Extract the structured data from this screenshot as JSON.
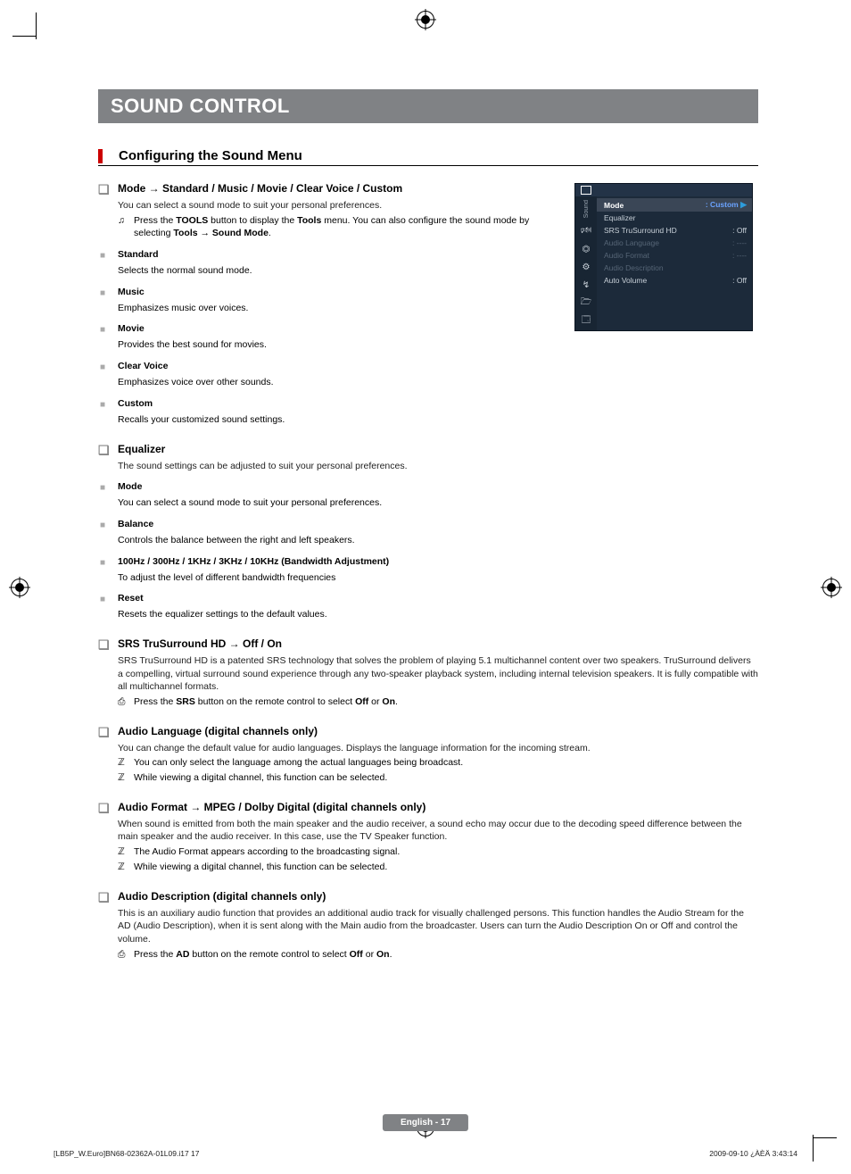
{
  "title_bar": "SOUND CONTROL",
  "section_heading": "Configuring the Sound Menu",
  "mode_section": {
    "heading": "Mode → Standard / Music / Movie / Clear Voice / Custom",
    "intro": "You can select a sound mode to suit your personal preferences.",
    "tip_icon": "♫",
    "tip_text_a": "Press the ",
    "tip_bold_a": "TOOLS",
    "tip_text_b": " button to display the ",
    "tip_bold_b": "Tools",
    "tip_text_c": " menu. You can also configure the sound mode by selecting ",
    "tip_bold_c": "Tools → Sound Mode",
    "tip_text_d": ".",
    "items": [
      {
        "title": "Standard",
        "body": "Selects the normal sound mode."
      },
      {
        "title": "Music",
        "body": "Emphasizes music over voices."
      },
      {
        "title": "Movie",
        "body": "Provides the best sound for movies."
      },
      {
        "title": "Clear Voice",
        "body": "Emphasizes voice over other sounds."
      },
      {
        "title": "Custom",
        "body": "Recalls your customized sound settings."
      }
    ]
  },
  "equalizer_section": {
    "heading": "Equalizer",
    "intro": "The sound settings can be adjusted to suit your personal preferences.",
    "items": [
      {
        "title": "Mode",
        "body": "You can select a sound mode to suit your personal preferences."
      },
      {
        "title": "Balance",
        "body": "Controls the balance between the right and left speakers."
      },
      {
        "title": "100Hz / 300Hz / 1KHz / 3KHz / 10KHz (Bandwidth Adjustment)",
        "body": "To adjust the level of different bandwidth frequencies"
      },
      {
        "title": "Reset",
        "body": "Resets the equalizer settings to the default values."
      }
    ]
  },
  "srs_section": {
    "heading": "SRS TruSurround HD → Off / On",
    "body": "SRS TruSurround HD is a patented SRS technology that solves the problem of playing 5.1 multichannel content over two speakers. TruSurround delivers a compelling, virtual surround sound experience through any two-speaker playback system, including internal television speakers. It is fully compatible with all multichannel formats.",
    "tip_icon": "⎙",
    "tip_a": "Press the ",
    "tip_bold": "SRS",
    "tip_b": " button on the remote control to select ",
    "tip_bold2": "Off",
    "tip_c": " or ",
    "tip_bold3": "On",
    "tip_d": "."
  },
  "audiolang_section": {
    "heading": "Audio Language (digital channels only)",
    "body": "You can change the default value for audio languages. Displays the language information for the incoming stream.",
    "note_icon": "ℤ",
    "note1": "You can only select the language among the actual languages being broadcast.",
    "note2": "While viewing a digital channel, this function can be selected."
  },
  "audiofmt_section": {
    "heading": "Audio Format → MPEG / Dolby Digital (digital channels only)",
    "body": "When sound is emitted from both the main speaker and the audio receiver, a sound echo may occur due to the decoding speed difference between the main speaker and the audio receiver. In this case, use the TV Speaker function.",
    "note_icon": "ℤ",
    "note1": "The Audio Format appears according to the broadcasting signal.",
    "note2": "While viewing a digital channel, this function can be selected."
  },
  "audiodesc_section": {
    "heading": "Audio Description (digital channels only)",
    "body": "This is an auxiliary audio function that provides an additional audio track for visually challenged persons. This function handles the Audio Stream for the AD (Audio Description), when it is sent along with the Main audio from the broadcaster. Users can turn the Audio Description On or Off and control the volume.",
    "tip_icon": "⎙",
    "tip_a": "Press the ",
    "tip_bold": "AD",
    "tip_b": " button on the remote control to select ",
    "tip_bold2": "Off",
    "tip_c": " or ",
    "tip_bold3": "On",
    "tip_d": "."
  },
  "osd": {
    "rail_label": "Sound",
    "icons": [
      "⏣",
      "⚙",
      "↯",
      "🗁",
      "🗔"
    ],
    "speaker_icon": "🕬",
    "rows": [
      {
        "label": "Mode",
        "value": ": Custom",
        "highlight": true,
        "arrow": "▶"
      },
      {
        "label": "Equalizer",
        "value": ""
      },
      {
        "label": "SRS TruSurround HD",
        "value": ": Off"
      },
      {
        "label": "Audio Language",
        "value": ": ----",
        "dim": true
      },
      {
        "label": "Audio Format",
        "value": ": ----",
        "dim": true
      },
      {
        "label": "Audio Description",
        "value": "",
        "dim": true
      },
      {
        "label": "Auto Volume",
        "value": ": Off"
      }
    ]
  },
  "footer": {
    "page": "English - 17",
    "left": "[LB5P_W.Euro]BN68-02362A-01L09.i17   17",
    "right": "2009-09-10   ¿ÀÈÄ 3:43:14"
  }
}
